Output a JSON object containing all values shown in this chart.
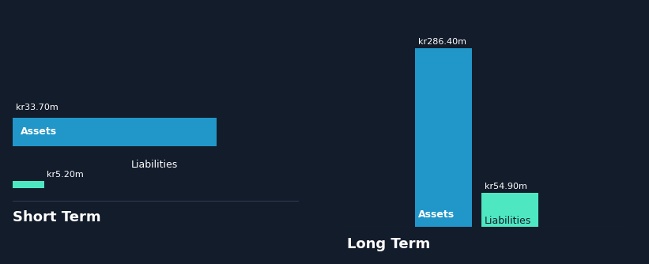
{
  "background_color": "#131c2b",
  "short_term": {
    "label": "Short Term",
    "assets_value": 33.7,
    "assets_label": "Assets",
    "assets_value_str": "kr33.70m",
    "liabilities_value": 5.2,
    "liabilities_label": "Liabilities",
    "liabilities_value_str": "kr5.20m"
  },
  "long_term": {
    "label": "Long Term",
    "assets_value": 286.4,
    "assets_label": "Assets",
    "assets_value_str": "kr286.40m",
    "liabilities_value": 54.9,
    "liabilities_label": "Liabilities",
    "liabilities_value_str": "kr54.90m"
  },
  "assets_color": "#2196c9",
  "liabilities_color": "#4de8c2",
  "text_color": "#ffffff",
  "dark_text": "#131c2b",
  "bar_label_fontsize": 9,
  "value_label_fontsize": 8,
  "section_label_fontsize": 13
}
